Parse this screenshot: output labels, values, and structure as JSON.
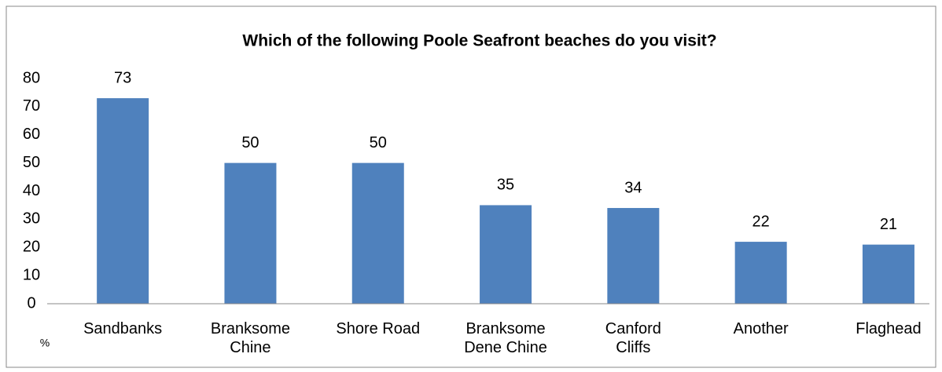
{
  "chart_data": {
    "type": "bar",
    "title": "Which of the following Poole Seafront beaches do you visit?",
    "ylabel": "%",
    "categories": [
      "Sandbanks",
      "Branksome\nChine",
      "Shore Road",
      "Branksome\nDene Chine",
      "Canford\nCliffs",
      "Another",
      "Flaghead"
    ],
    "values": [
      73,
      50,
      50,
      35,
      34,
      22,
      21
    ],
    "color": "#4f81bd",
    "ylim": [
      0,
      80
    ],
    "yticks": [
      0,
      10,
      20,
      30,
      40,
      50,
      60,
      70,
      80
    ],
    "grid": false
  }
}
